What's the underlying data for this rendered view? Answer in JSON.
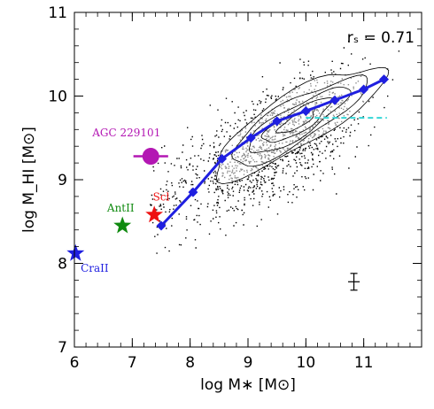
{
  "chart_data": {
    "type": "scatter",
    "title": "",
    "xlabel": "log M∗ [M⊙]",
    "ylabel": "log M_HI [M⊙]",
    "xlim": [
      6,
      12
    ],
    "ylim": [
      7,
      11
    ],
    "xticks": [
      "6",
      "7",
      "8",
      "9",
      "10",
      "11"
    ],
    "yticks": [
      "7",
      "8",
      "9",
      "10",
      "11"
    ],
    "grid": false,
    "statistic": "rₛ = 0.71",
    "scatter_note": "background sample of several thousand galaxies shown as small black dots with density contours, concentrated along the trend and densest near log M∗ = 9.5–10.5",
    "series": [
      {
        "name": "",
        "style": "median-trend",
        "color": "#1f1fe0",
        "x": [
          7.5,
          8.05,
          8.55,
          9.05,
          9.5,
          10.0,
          10.5,
          11.0,
          11.35
        ],
        "y": [
          8.45,
          8.85,
          9.25,
          9.5,
          9.7,
          9.82,
          9.95,
          10.08,
          10.2
        ]
      },
      {
        "name": "",
        "style": "dashed",
        "color": "#33d6d6",
        "x": [
          10.0,
          11.4
        ],
        "y": [
          9.74,
          9.74
        ]
      }
    ],
    "points": [
      {
        "label": "AGC 229101",
        "x": 7.32,
        "y": 9.28,
        "marker": "circle",
        "color": "#b317b3",
        "xerr": 0.3,
        "label_x": 6.9,
        "label_y": 9.52
      },
      {
        "label": "Scl",
        "x": 7.38,
        "y": 8.58,
        "marker": "star",
        "color": "#ee1111",
        "label_x": 7.5,
        "label_y": 8.75
      },
      {
        "label": "AntII",
        "x": 6.83,
        "y": 8.45,
        "marker": "star",
        "color": "#108a10",
        "label_x": 6.8,
        "label_y": 8.62
      },
      {
        "label": "CraII",
        "x": 6.02,
        "y": 8.12,
        "marker": "star",
        "color": "#1f1fe0",
        "label_x": 6.35,
        "label_y": 7.9
      }
    ],
    "typical_error": {
      "x": 10.83,
      "y": 7.78,
      "xerr": 0.1,
      "yerr": 0.1
    }
  }
}
